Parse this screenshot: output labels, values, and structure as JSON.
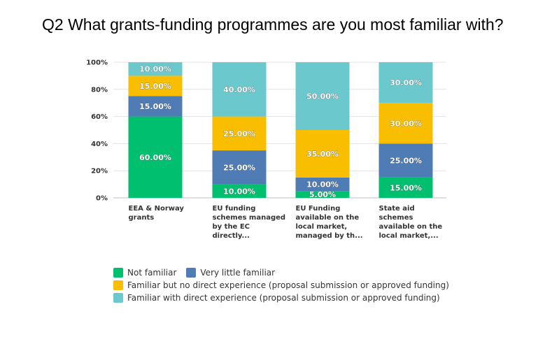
{
  "title": "Q2 What grants-funding programmes are you most familiar with?",
  "chart_data": {
    "type": "bar",
    "stacked": true,
    "ylim": [
      0,
      100
    ],
    "y_ticks": [
      "0%",
      "20%",
      "40%",
      "60%",
      "80%",
      "100%"
    ],
    "categories": [
      [
        "EEA & Norway",
        "grants"
      ],
      [
        "EU funding",
        "schemes managed",
        "by the EC",
        "directly..."
      ],
      [
        "EU Funding",
        "available on the",
        "local market,",
        "managed by th..."
      ],
      [
        "State aid",
        "schemes",
        "available on the",
        "local market,..."
      ]
    ],
    "series": [
      {
        "name": "Not familiar",
        "color": "#00bf6f",
        "values": [
          60,
          10,
          5,
          15
        ],
        "labels": [
          "60.00%",
          "10.00%",
          "5.00%",
          "15.00%"
        ]
      },
      {
        "name": "Very little familiar",
        "color": "#507cb6",
        "values": [
          15,
          25,
          10,
          25
        ],
        "labels": [
          "15.00%",
          "25.00%",
          "10.00%",
          "25.00%"
        ]
      },
      {
        "name": "Familiar but no direct experience (proposal submission or approved funding)",
        "color": "#f9be00",
        "values": [
          15,
          25,
          35,
          30
        ],
        "labels": [
          "15.00%",
          "25.00%",
          "35.00%",
          "30.00%"
        ]
      },
      {
        "name": "Familiar with direct experience (proposal submission or approved funding)",
        "color": "#6bc8cd",
        "values": [
          10,
          40,
          50,
          30
        ],
        "labels": [
          "10.00%",
          "40.00%",
          "50.00%",
          "30.00%"
        ]
      }
    ],
    "grid": true,
    "legend_position": "bottom-left"
  }
}
